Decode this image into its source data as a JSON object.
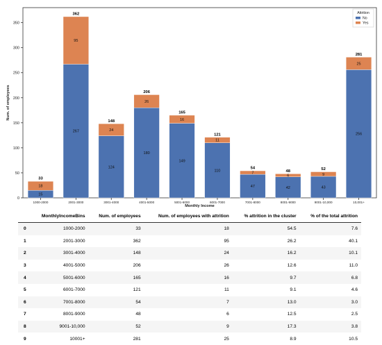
{
  "chart_data": {
    "type": "bar",
    "stacked": true,
    "categories": [
      "1000-2000",
      "2001-3000",
      "3001-4000",
      "4001-5000",
      "5001-6000",
      "6001-7000",
      "7001-8000",
      "8001-9000",
      "9001-10,000",
      "10,001+"
    ],
    "series": [
      {
        "name": "No",
        "values": [
          15,
          267,
          124,
          180,
          149,
          110,
          47,
          42,
          43,
          256
        ],
        "color": "#4c72b0"
      },
      {
        "name": "Yes",
        "values": [
          18,
          95,
          24,
          26,
          16,
          11,
          7,
          6,
          9,
          25
        ],
        "color": "#dd8452"
      }
    ],
    "totals": [
      33,
      362,
      148,
      206,
      165,
      121,
      54,
      48,
      52,
      281
    ],
    "xlabel": "Monthly Income",
    "ylabel": "Num. of employees",
    "ylim": [
      0,
      380
    ],
    "yticks": [
      0,
      50,
      100,
      150,
      200,
      250,
      300,
      350
    ],
    "legend": {
      "title": "Attrition",
      "placement": "top-right"
    },
    "grid": false
  },
  "table": {
    "columns": [
      "",
      "MonthlyIncomeBins",
      "Num. of employees",
      "Num. of employees with attrition",
      "% attrition in the cluster",
      "% of the total attrition"
    ],
    "rows": [
      [
        "0",
        "1000-2000",
        "33",
        "18",
        "54.5",
        "7.6"
      ],
      [
        "1",
        "2001-3000",
        "362",
        "95",
        "26.2",
        "40.1"
      ],
      [
        "2",
        "3001-4000",
        "148",
        "24",
        "16.2",
        "10.1"
      ],
      [
        "3",
        "4001-5000",
        "206",
        "26",
        "12.6",
        "11.0"
      ],
      [
        "4",
        "5001-6000",
        "165",
        "16",
        "9.7",
        "6.8"
      ],
      [
        "5",
        "6001-7000",
        "121",
        "11",
        "9.1",
        "4.6"
      ],
      [
        "6",
        "7001-8000",
        "54",
        "7",
        "13.0",
        "3.0"
      ],
      [
        "7",
        "8001-9000",
        "48",
        "6",
        "12.5",
        "2.5"
      ],
      [
        "8",
        "9001-10,000",
        "52",
        "9",
        "17.3",
        "3.8"
      ],
      [
        "9",
        "10001+",
        "281",
        "25",
        "8.9",
        "10.5"
      ]
    ]
  }
}
